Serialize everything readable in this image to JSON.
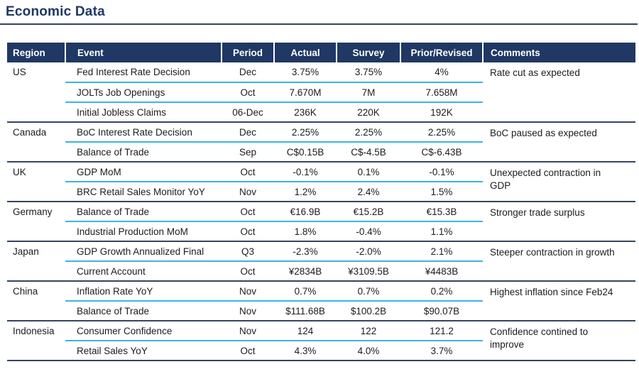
{
  "page": {
    "title": "Economic Data"
  },
  "colors": {
    "navy": "#1f3864",
    "cyan_row_separator": "#3ab5e2",
    "group_separator": "#35455f"
  },
  "table": {
    "headers": [
      "Region",
      "Event",
      "Period",
      "Actual",
      "Survey",
      "Prior/Revised",
      "Comments"
    ],
    "regions": [
      {
        "region": "US",
        "comment": "Rate cut as expected",
        "rows": [
          {
            "event": "Fed Interest Rate Decision",
            "period": "Dec",
            "actual": "3.75%",
            "survey": "3.75%",
            "prior": "4%"
          },
          {
            "event": "JOLTs Job Openings",
            "period": "Oct",
            "actual": "7.670M",
            "survey": "7M",
            "prior": "7.658M"
          },
          {
            "event": "Initial Jobless Claims",
            "period": "06-Dec",
            "actual": "236K",
            "survey": "220K",
            "prior": "192K"
          }
        ]
      },
      {
        "region": "Canada",
        "comment": "BoC paused as expected",
        "rows": [
          {
            "event": "BoC Interest Rate Decision",
            "period": "Dec",
            "actual": "2.25%",
            "survey": "2.25%",
            "prior": "2.25%"
          },
          {
            "event": "Balance of Trade",
            "period": "Sep",
            "actual": "C$0.15B",
            "survey": "C$-4.5B",
            "prior": "C$-6.43B"
          }
        ]
      },
      {
        "region": "UK",
        "comment": "Unexpected contraction in\nGDP",
        "rows": [
          {
            "event": "GDP MoM",
            "period": "Oct",
            "actual": "-0.1%",
            "survey": "0.1%",
            "prior": "-0.1%"
          },
          {
            "event": "BRC Retail Sales Monitor YoY",
            "period": "Nov",
            "actual": "1.2%",
            "survey": "2.4%",
            "prior": "1.5%"
          }
        ]
      },
      {
        "region": "Germany",
        "comment": "Stronger trade surplus",
        "rows": [
          {
            "event": "Balance of Trade",
            "period": "Oct",
            "actual": "€16.9B",
            "survey": "€15.2B",
            "prior": "€15.3B"
          },
          {
            "event": "Industrial Production MoM",
            "period": "Oct",
            "actual": "1.8%",
            "survey": "-0.4%",
            "prior": "1.1%"
          }
        ]
      },
      {
        "region": "Japan",
        "comment": "Steeper contraction in growth",
        "rows": [
          {
            "event": "GDP Growth Annualized Final",
            "period": "Q3",
            "actual": "-2.3%",
            "survey": "-2.0%",
            "prior": "2.1%"
          },
          {
            "event": "Current Account",
            "period": "Oct",
            "actual": "¥2834B",
            "survey": "¥3109.5B",
            "prior": "¥4483B"
          }
        ]
      },
      {
        "region": "China",
        "comment": "Highest inflation since Feb24",
        "rows": [
          {
            "event": "Inflation Rate YoY",
            "period": "Nov",
            "actual": "0.7%",
            "survey": "0.7%",
            "prior": "0.2%"
          },
          {
            "event": "Balance of Trade",
            "period": "Nov",
            "actual": "$111.68B",
            "survey": "$100.2B",
            "prior": "$90.07B"
          }
        ]
      },
      {
        "region": "Indonesia",
        "comment": "Confidence contined to\nimprove",
        "rows": [
          {
            "event": "Consumer Confidence",
            "period": "Nov",
            "actual": "124",
            "survey": "122",
            "prior": "121.2"
          },
          {
            "event": "Retail Sales YoY",
            "period": "Oct",
            "actual": "4.3%",
            "survey": "4.0%",
            "prior": "3.7%"
          }
        ]
      }
    ]
  }
}
